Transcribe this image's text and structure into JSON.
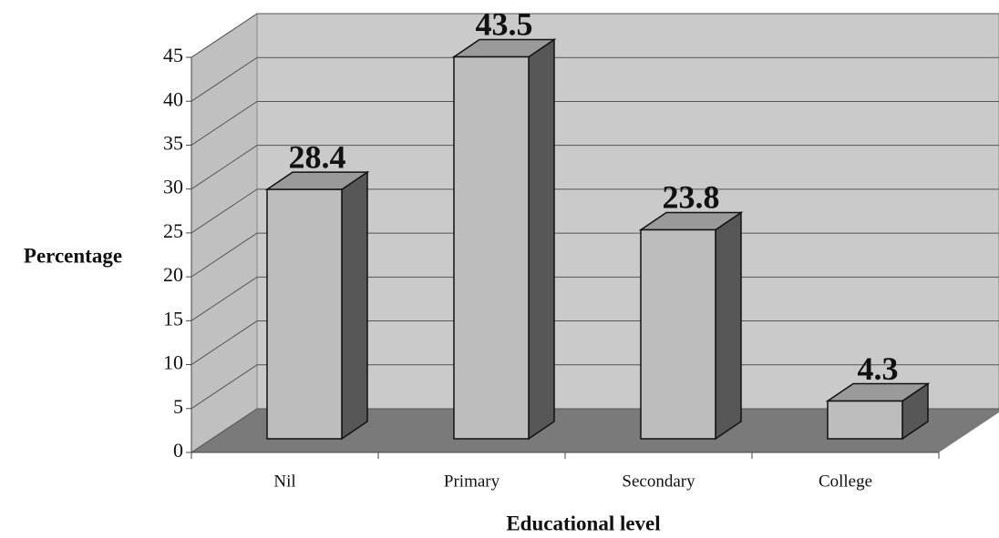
{
  "chart_data": {
    "type": "bar3d",
    "categories": [
      "Nil",
      "Primary",
      "Secondary",
      "College"
    ],
    "values": [
      28.4,
      43.5,
      23.8,
      4.3
    ],
    "xlabel": "Educational level",
    "ylabel": "Percentage",
    "ylim": [
      0,
      45
    ],
    "yticks": [
      0,
      5,
      10,
      15,
      20,
      25,
      30,
      35,
      40,
      45
    ],
    "grid": true,
    "color": "#bdbdbd"
  }
}
